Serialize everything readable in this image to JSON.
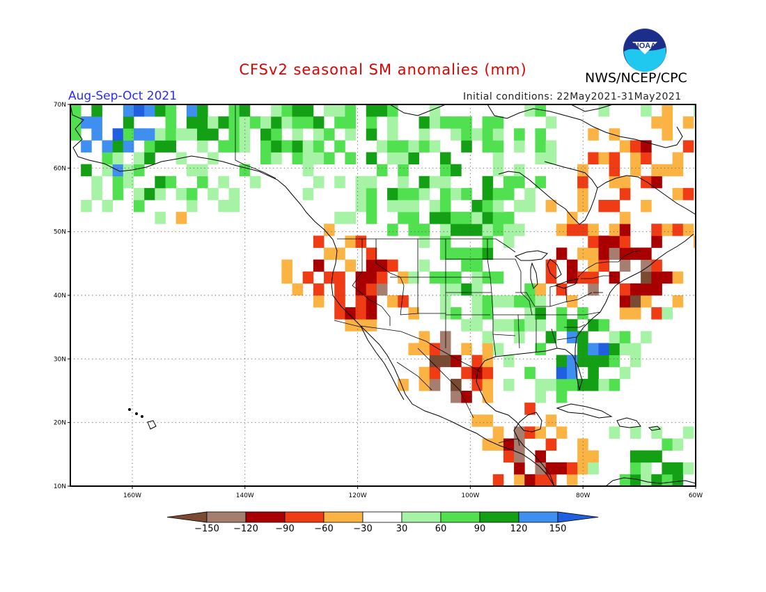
{
  "title": "CFSv2 seasonal SM anomalies (mm)",
  "organization": "NWS/NCEP/CPC",
  "logo_text": "NOAA",
  "season": "Aug-Sep-Oct 2021",
  "initial_conditions": "Initial conditions: 22May2021-31May2021",
  "map": {
    "lon_min": -171,
    "lon_max": -60,
    "lat_min": 10,
    "lat_max": 70,
    "lat_labels": [
      {
        "lat": 70,
        "label": "70N"
      },
      {
        "lat": 60,
        "label": "60N"
      },
      {
        "lat": 50,
        "label": "50N"
      },
      {
        "lat": 40,
        "label": "40N"
      },
      {
        "lat": 30,
        "label": "30N"
      },
      {
        "lat": 20,
        "label": "20N"
      },
      {
        "lat": 10,
        "label": "10N"
      }
    ],
    "lon_labels": [
      {
        "lon": -160,
        "label": "160W"
      },
      {
        "lon": -140,
        "label": "140W"
      },
      {
        "lon": -120,
        "label": "120W"
      },
      {
        "lon": -100,
        "label": "100W"
      },
      {
        "lon": -80,
        "label": "80W"
      },
      {
        "lon": -60,
        "label": "60W"
      }
    ]
  },
  "colorbar": {
    "labels": [
      "-150",
      "-120",
      "-90",
      "-60",
      "-30",
      "30",
      "60",
      "90",
      "120",
      "150"
    ],
    "colors": [
      "#7a4a32",
      "#a57e70",
      "#a80000",
      "#f03c14",
      "#fbb444",
      "#ffffff",
      "#a6f3a6",
      "#50e050",
      "#14a014",
      "#3f8ff0",
      "#1f5fe0"
    ]
  },
  "anomaly_regions": [
    {
      "lon": -162,
      "lat": 64,
      "value": 150
    },
    {
      "lon": -158,
      "lat": 60,
      "value": 45
    },
    {
      "lon": -145,
      "lat": 62,
      "value": 45
    },
    {
      "lon": -133,
      "lat": 69,
      "value": 90
    },
    {
      "lon": -124,
      "lat": 68,
      "value": 75
    },
    {
      "lon": -115,
      "lat": 66,
      "value": 45
    },
    {
      "lon": -108,
      "lat": 63,
      "value": 45
    },
    {
      "lon": -112,
      "lat": 55,
      "value": 60
    },
    {
      "lon": -106,
      "lat": 52,
      "value": 70
    },
    {
      "lon": -97,
      "lat": 56,
      "value": 60
    },
    {
      "lon": -87,
      "lat": 66,
      "value": 45
    },
    {
      "lon": -75,
      "lat": 59,
      "value": -75
    },
    {
      "lon": -71,
      "lat": 53,
      "value": -45
    },
    {
      "lon": -84,
      "lat": 43,
      "value": -45
    },
    {
      "lon": -75,
      "lat": 42,
      "value": -140
    },
    {
      "lon": -122,
      "lat": 41,
      "value": -100
    },
    {
      "lon": -100,
      "lat": 41,
      "value": 60
    },
    {
      "lon": -96,
      "lat": 36,
      "value": 45
    },
    {
      "lon": -90,
      "lat": 32,
      "value": 60
    },
    {
      "lon": -82,
      "lat": 31,
      "value": 150
    },
    {
      "lon": -103,
      "lat": 28,
      "value": -130
    },
    {
      "lon": -89,
      "lat": 14,
      "value": -100
    },
    {
      "lon": -68,
      "lat": 11,
      "value": 75
    }
  ]
}
